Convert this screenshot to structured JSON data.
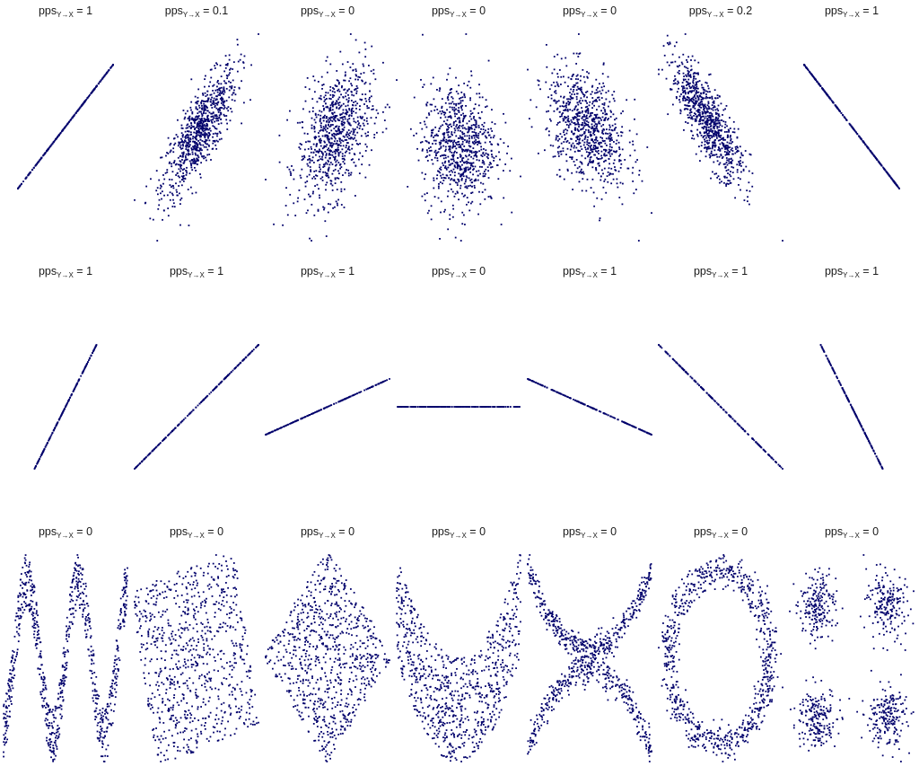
{
  "colors": {
    "points": "#00006b",
    "text": "#1a1a1a",
    "background": "#ffffff"
  },
  "label_template": {
    "prefix": "pps",
    "subscript": "Y→X",
    "equals": " = "
  },
  "chart_data": [
    {
      "type": "scatter",
      "pattern": "line",
      "pps": "1",
      "slope": 1.3,
      "n": 300
    },
    {
      "type": "scatter",
      "pattern": "gauss",
      "pps": "0.1",
      "rho": 0.8,
      "n": 800
    },
    {
      "type": "scatter",
      "pattern": "gauss",
      "pps": "0",
      "rho": 0.4,
      "n": 800
    },
    {
      "type": "scatter",
      "pattern": "gauss",
      "pps": "0",
      "rho": 0.0,
      "n": 800
    },
    {
      "type": "scatter",
      "pattern": "gauss",
      "pps": "0",
      "rho": -0.4,
      "n": 800
    },
    {
      "type": "scatter",
      "pattern": "gauss",
      "pps": "0.2",
      "rho": -0.8,
      "n": 800
    },
    {
      "type": "scatter",
      "pattern": "line",
      "pps": "1",
      "slope": -1.3,
      "n": 300
    },
    {
      "type": "scatter",
      "pattern": "line",
      "pps": "1",
      "slope": 2.0,
      "n": 200
    },
    {
      "type": "scatter",
      "pattern": "line",
      "pps": "1",
      "slope": 1.0,
      "n": 200
    },
    {
      "type": "scatter",
      "pattern": "line",
      "pps": "1",
      "slope": 0.45,
      "n": 200
    },
    {
      "type": "scatter",
      "pattern": "line",
      "pps": "0",
      "slope": 0.0,
      "n": 200
    },
    {
      "type": "scatter",
      "pattern": "line",
      "pps": "1",
      "slope": -0.45,
      "n": 200
    },
    {
      "type": "scatter",
      "pattern": "line",
      "pps": "1",
      "slope": -1.0,
      "n": 200
    },
    {
      "type": "scatter",
      "pattern": "line",
      "pps": "1",
      "slope": -2.0,
      "n": 200
    },
    {
      "type": "scatter",
      "pattern": "wave",
      "pps": "0",
      "n": 800
    },
    {
      "type": "scatter",
      "pattern": "rotsquare",
      "pps": "0",
      "n": 800
    },
    {
      "type": "scatter",
      "pattern": "diamond",
      "pps": "0",
      "n": 800
    },
    {
      "type": "scatter",
      "pattern": "parabola",
      "pps": "0",
      "n": 800
    },
    {
      "type": "scatter",
      "pattern": "xshape",
      "pps": "0",
      "n": 800
    },
    {
      "type": "scatter",
      "pattern": "ring",
      "pps": "0",
      "n": 800
    },
    {
      "type": "scatter",
      "pattern": "clusters",
      "pps": "0",
      "n": 800
    }
  ]
}
